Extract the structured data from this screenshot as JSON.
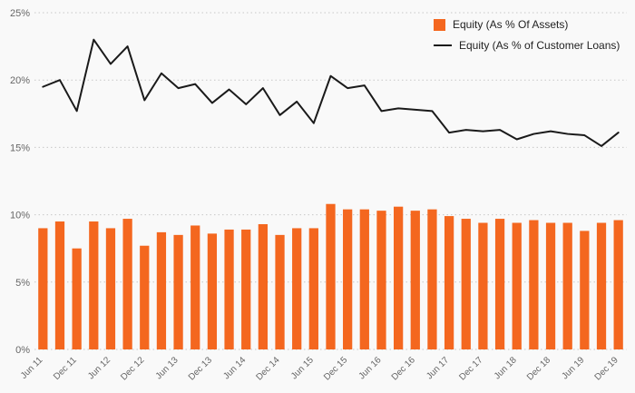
{
  "legend": {
    "items": [
      {
        "label": "Equity (As % Of Assets)",
        "marker": "bar-swatch"
      },
      {
        "label": "Equity (As % of Customer Loans)",
        "marker": "line-swatch"
      }
    ]
  },
  "chart_data": {
    "type": "combo",
    "title": "",
    "xlabel": "",
    "ylabel": "",
    "categories": [
      "Jun 11",
      "Sep 11",
      "Dec 11",
      "Mar 12",
      "Jun 12",
      "Sep 12",
      "Dec 12",
      "Mar 13",
      "Jun 13",
      "Sep 13",
      "Dec 13",
      "Mar 14",
      "Jun 14",
      "Sep 14",
      "Dec 14",
      "Mar 15",
      "Jun 15",
      "Sep 15",
      "Dec 15",
      "Mar 16",
      "Jun 16",
      "Sep 16",
      "Dec 16",
      "Mar 17",
      "Jun 17",
      "Sep 17",
      "Dec 17",
      "Mar 18",
      "Jun 18",
      "Sep 18",
      "Dec 18",
      "Mar 19",
      "Jun 19",
      "Sep 19",
      "Dec 19"
    ],
    "x_tick_label_every": 2,
    "x_tick_labels_shown": [
      "Jun 11",
      "Dec 11",
      "Jun 12",
      "Dec 12",
      "Jun 13",
      "Dec 13",
      "Jun 14",
      "Dec 14",
      "Jun 15",
      "Dec 15",
      "Jun 16",
      "Dec 16",
      "Jun 17",
      "Dec 17",
      "Jun 18",
      "Dec 18",
      "Jun 19",
      "Dec 19"
    ],
    "series": [
      {
        "name": "Equity (As % Of Assets)",
        "type": "bar",
        "values": [
          9.0,
          9.5,
          7.5,
          9.5,
          9.0,
          9.7,
          7.7,
          8.7,
          8.5,
          9.2,
          8.6,
          8.9,
          8.9,
          9.3,
          8.5,
          9.0,
          9.0,
          10.8,
          10.4,
          10.4,
          10.3,
          10.6,
          10.3,
          10.4,
          9.9,
          9.7,
          9.4,
          9.7,
          9.4,
          9.6,
          9.4,
          9.4,
          8.8,
          9.4,
          9.6
        ]
      },
      {
        "name": "Equity (As % of Customer Loans)",
        "type": "line",
        "values": [
          19.5,
          20.0,
          17.7,
          23.0,
          21.2,
          22.5,
          18.5,
          20.5,
          19.4,
          19.7,
          18.3,
          19.3,
          18.2,
          19.4,
          17.4,
          18.4,
          16.8,
          20.3,
          19.4,
          19.6,
          17.7,
          17.9,
          17.8,
          17.7,
          16.1,
          16.3,
          16.2,
          16.3,
          15.6,
          16.0,
          16.2,
          16.0,
          15.9,
          15.1,
          16.1
        ]
      }
    ],
    "ylim": [
      0,
      25
    ],
    "yticks": [
      0,
      5,
      10,
      15,
      20,
      25
    ],
    "y_suffix": "%",
    "grid": "horizontal-dotted",
    "legend_position": "top-right",
    "colors": {
      "bar": "#f4671f",
      "line": "#1a1a1a",
      "grid": "#c8c8c8",
      "tick_text": "#666666",
      "background": "#f9f9f9"
    }
  }
}
